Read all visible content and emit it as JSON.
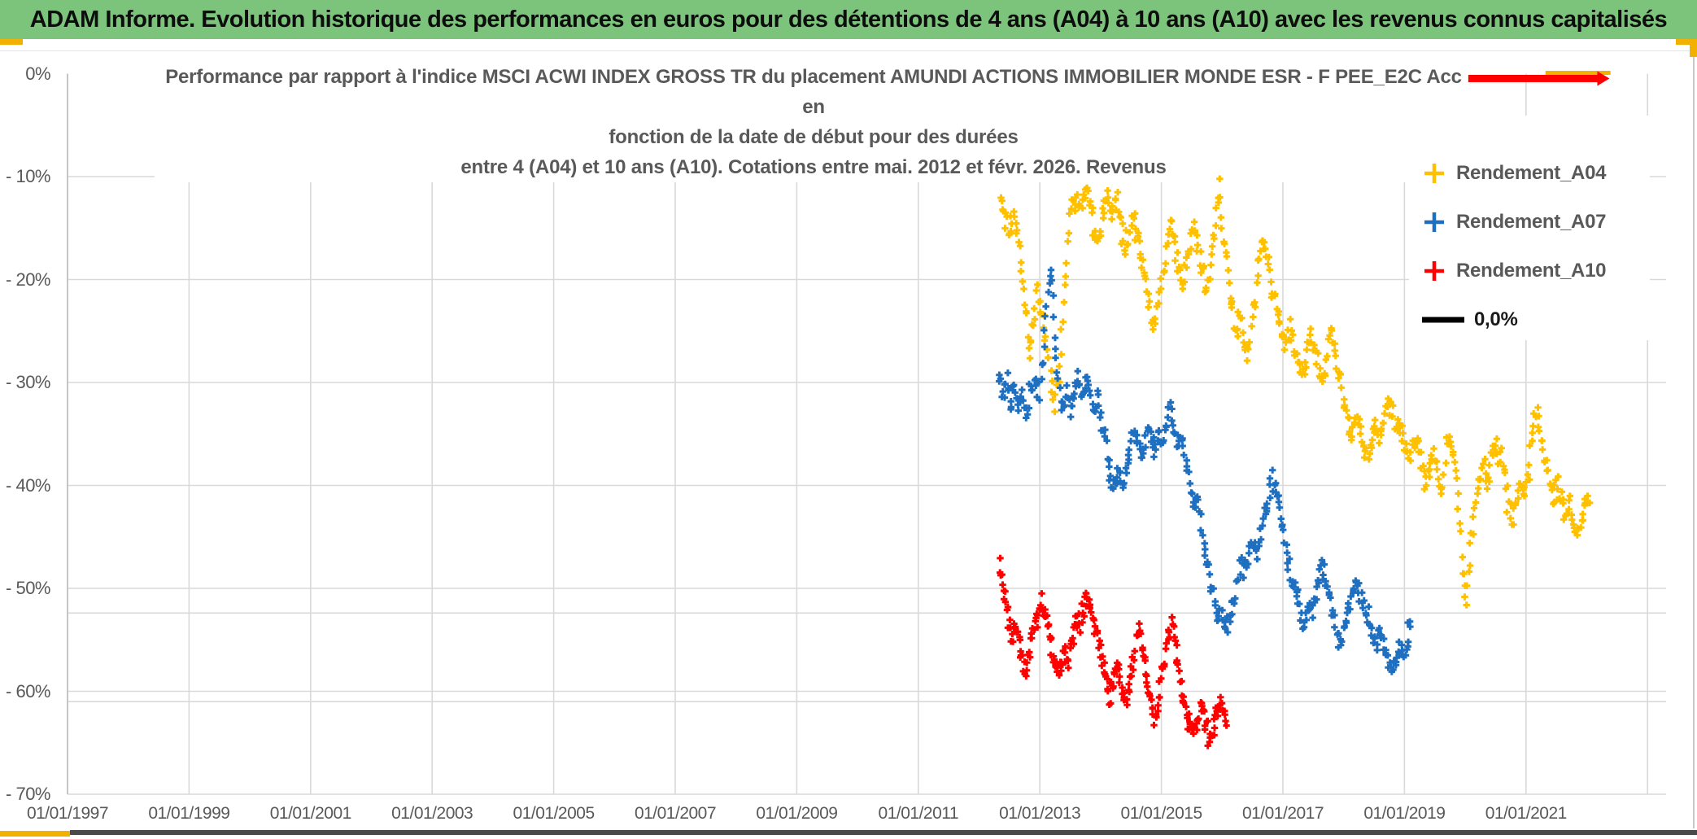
{
  "header": {
    "title": "ADAM Informe. Evolution historique des performances en euros pour des détentions de 4 ans (A04) à 10 ans (A10) avec les revenus connus capitalisés"
  },
  "colors": {
    "header_bg": "#7CC47C",
    "accent_orange": "#F2B100",
    "grid": "#D9D9D9",
    "axis": "#BFBFBF",
    "text_gray": "#595959",
    "footer_bar": "#4A4A4A",
    "series_a04": "#FFC000",
    "series_a07": "#1E6FC0",
    "series_a10": "#FE0000",
    "zero_line": "#000000"
  },
  "chart_data": {
    "type": "scatter",
    "title_lines": [
      "Performance par rapport à l'indice MSCI ACWI INDEX GROSS TR  du placement AMUNDI ACTIONS IMMOBILIER MONDE ESR - F PEE_E2C Acc en",
      "fonction de la date de début pour des durées",
      "entre 4 (A04) et 10 ans (A10). Cotations entre mai. 2012 et févr. 2026. Revenus"
    ],
    "x_ticks": [
      "01/01/1997",
      "01/01/1999",
      "01/01/2001",
      "01/01/2003",
      "01/01/2005",
      "01/01/2007",
      "01/01/2009",
      "01/01/2011",
      "01/01/2013",
      "01/01/2015",
      "01/01/2017",
      "01/01/2019",
      "01/01/2021"
    ],
    "x_tick_years": [
      1997,
      1999,
      2001,
      2003,
      2005,
      2007,
      2009,
      2011,
      2013,
      2015,
      2017,
      2019,
      2021
    ],
    "grid_years": [
      1999,
      2001,
      2003,
      2005,
      2007,
      2009,
      2011,
      2013,
      2015,
      2017,
      2019,
      2021,
      2023
    ],
    "y_ticks": [
      {
        "label": "0%",
        "value": 0
      },
      {
        "label": "- 10%",
        "value": -10
      },
      {
        "label": "- 20%",
        "value": -20
      },
      {
        "label": "- 30%",
        "value": -30
      },
      {
        "label": "- 40%",
        "value": -40
      },
      {
        "label": "- 50%",
        "value": -50
      },
      {
        "label": "- 60%",
        "value": -60
      },
      {
        "label": "- 70%",
        "value": -70
      }
    ],
    "ylim": [
      -70,
      0
    ],
    "extra_gridlines_pct": [
      -52.4,
      -61.0
    ],
    "legend": [
      {
        "label": "Rendement_A04",
        "color": "#FFC000",
        "marker": "plus",
        "text_color": "#595959"
      },
      {
        "label": "Rendement_A07",
        "color": "#1E6FC0",
        "marker": "plus",
        "text_color": "#595959"
      },
      {
        "label": "Rendement_A10",
        "color": "#FE0000",
        "marker": "plus",
        "text_color": "#595959"
      },
      {
        "label": "0,0%",
        "color": "#000000",
        "marker": "line",
        "text_color": "#1a1a1a"
      }
    ],
    "annotation": {
      "at_pct": 0,
      "color": "#FE0000",
      "from_year": 2020.05,
      "to_year": 2022.2,
      "overlay_color": "#F2B100",
      "overlay_from_year": 2021.32,
      "overlay_to_year": 2022.39
    },
    "series": [
      {
        "name": "Rendement_A04",
        "color": "#FFC000",
        "marker": "plus",
        "spread_pct": 1.0,
        "start_year": 2012.36,
        "step_years": 0.06783,
        "values": [
          -11.5,
          -14,
          -16,
          -13.5,
          -15.5,
          -19,
          -23.5,
          -27.5,
          -24,
          -21,
          -23.5,
          -26,
          -29,
          -32.5,
          -29,
          -24,
          -18,
          -13,
          -11.5,
          -13.5,
          -12,
          -11,
          -13,
          -16.5,
          -15,
          -13,
          -12,
          -14,
          -11.5,
          -14,
          -17.5,
          -15.5,
          -14,
          -15.5,
          -17.5,
          -19.5,
          -22,
          -25,
          -22.5,
          -20,
          -17,
          -14.5,
          -16,
          -18.5,
          -21,
          -19,
          -16.5,
          -15,
          -17,
          -19.5,
          -21.5,
          -18,
          -14.5,
          -11,
          -16,
          -19,
          -23,
          -25.5,
          -23,
          -25.5,
          -27.5,
          -24,
          -20,
          -17,
          -16.5,
          -18.5,
          -21,
          -23,
          -25,
          -26.5,
          -24.5,
          -26,
          -28,
          -29.5,
          -27.5,
          -25,
          -26.5,
          -28.5,
          -30,
          -27.5,
          -25,
          -27,
          -29,
          -31.5,
          -33.5,
          -35.5,
          -33.5,
          -34.5,
          -36.5,
          -37.5,
          -35.5,
          -34,
          -35.5,
          -33.5,
          -31.5,
          -33,
          -35,
          -34,
          -36,
          -37.5,
          -36.5,
          -36,
          -38,
          -40,
          -38.5,
          -37,
          -38.5,
          -40.5,
          -36.5,
          -35.5,
          -38,
          -42,
          -48,
          -51,
          -46,
          -42,
          -39.5,
          -38,
          -39.5,
          -37.5,
          -36,
          -36.5,
          -38.5,
          -42,
          -43.5,
          -41,
          -39.5,
          -41,
          -38.5,
          -34.5,
          -32.5,
          -35,
          -37.5,
          -39.5,
          -41.5,
          -40,
          -41.5,
          -43,
          -42,
          -43.5,
          -44.5,
          -43,
          -41.5,
          -40.5
        ]
      },
      {
        "name": "Rendement_A07",
        "color": "#1E6FC0",
        "marker": "plus",
        "spread_pct": 0.95,
        "start_year": 2012.33,
        "step_years": 0.0653,
        "values": [
          -29,
          -31.5,
          -29.5,
          -32,
          -30,
          -32.5,
          -31,
          -33,
          -31,
          -29.5,
          -31.5,
          -28,
          -22,
          -19,
          -25,
          -30,
          -32.5,
          -30.5,
          -33,
          -31,
          -29.5,
          -31.5,
          -29.5,
          -31,
          -33,
          -31.5,
          -34,
          -36.5,
          -39,
          -40.5,
          -38.5,
          -40,
          -38,
          -36,
          -34.5,
          -36,
          -37.5,
          -35.5,
          -34.5,
          -36.5,
          -35,
          -36.5,
          -34,
          -32.5,
          -34.5,
          -36,
          -35,
          -37.5,
          -40,
          -42.5,
          -41,
          -44,
          -46.5,
          -49,
          -51,
          -53,
          -52,
          -54,
          -53.5,
          -51.5,
          -49.5,
          -47.5,
          -48.5,
          -47,
          -45.5,
          -47,
          -44.5,
          -42.5,
          -41,
          -39.5,
          -40.5,
          -43,
          -45.5,
          -47.5,
          -49.5,
          -51,
          -52.5,
          -53.5,
          -51.5,
          -52.5,
          -50,
          -47.5,
          -48.5,
          -50.5,
          -52.5,
          -54,
          -55.5,
          -54,
          -52,
          -50.5,
          -49.5,
          -50.5,
          -52,
          -53,
          -54.5,
          -55.5,
          -54,
          -55.5,
          -57,
          -58,
          -57,
          -55.5,
          -56.5,
          -54.5,
          -53
        ]
      },
      {
        "name": "Rendement_A10",
        "color": "#FE0000",
        "marker": "plus",
        "spread_pct": 0.85,
        "start_year": 2012.33,
        "step_years": 0.05357,
        "values": [
          -47.5,
          -49.5,
          -51.5,
          -53.5,
          -55,
          -53.5,
          -55,
          -56.5,
          -58,
          -56.5,
          -55,
          -53.5,
          -52.5,
          -51.5,
          -52.5,
          -54,
          -55.5,
          -57,
          -58.5,
          -57.5,
          -56,
          -57.5,
          -55.5,
          -54,
          -52.5,
          -53.5,
          -52,
          -50.5,
          -51.5,
          -53,
          -54.5,
          -56,
          -57.5,
          -59,
          -60.5,
          -59,
          -57.5,
          -58.5,
          -60,
          -61,
          -59.5,
          -57.5,
          -55,
          -53.5,
          -56,
          -58,
          -60,
          -61.5,
          -63,
          -61,
          -58.5,
          -56.5,
          -54.5,
          -53,
          -55.5,
          -58,
          -60,
          -61.5,
          -62.5,
          -63.5,
          -64,
          -63,
          -61.5,
          -62.5,
          -64,
          -64.5,
          -63.5,
          -62,
          -61,
          -62,
          -63.5
        ]
      }
    ]
  }
}
